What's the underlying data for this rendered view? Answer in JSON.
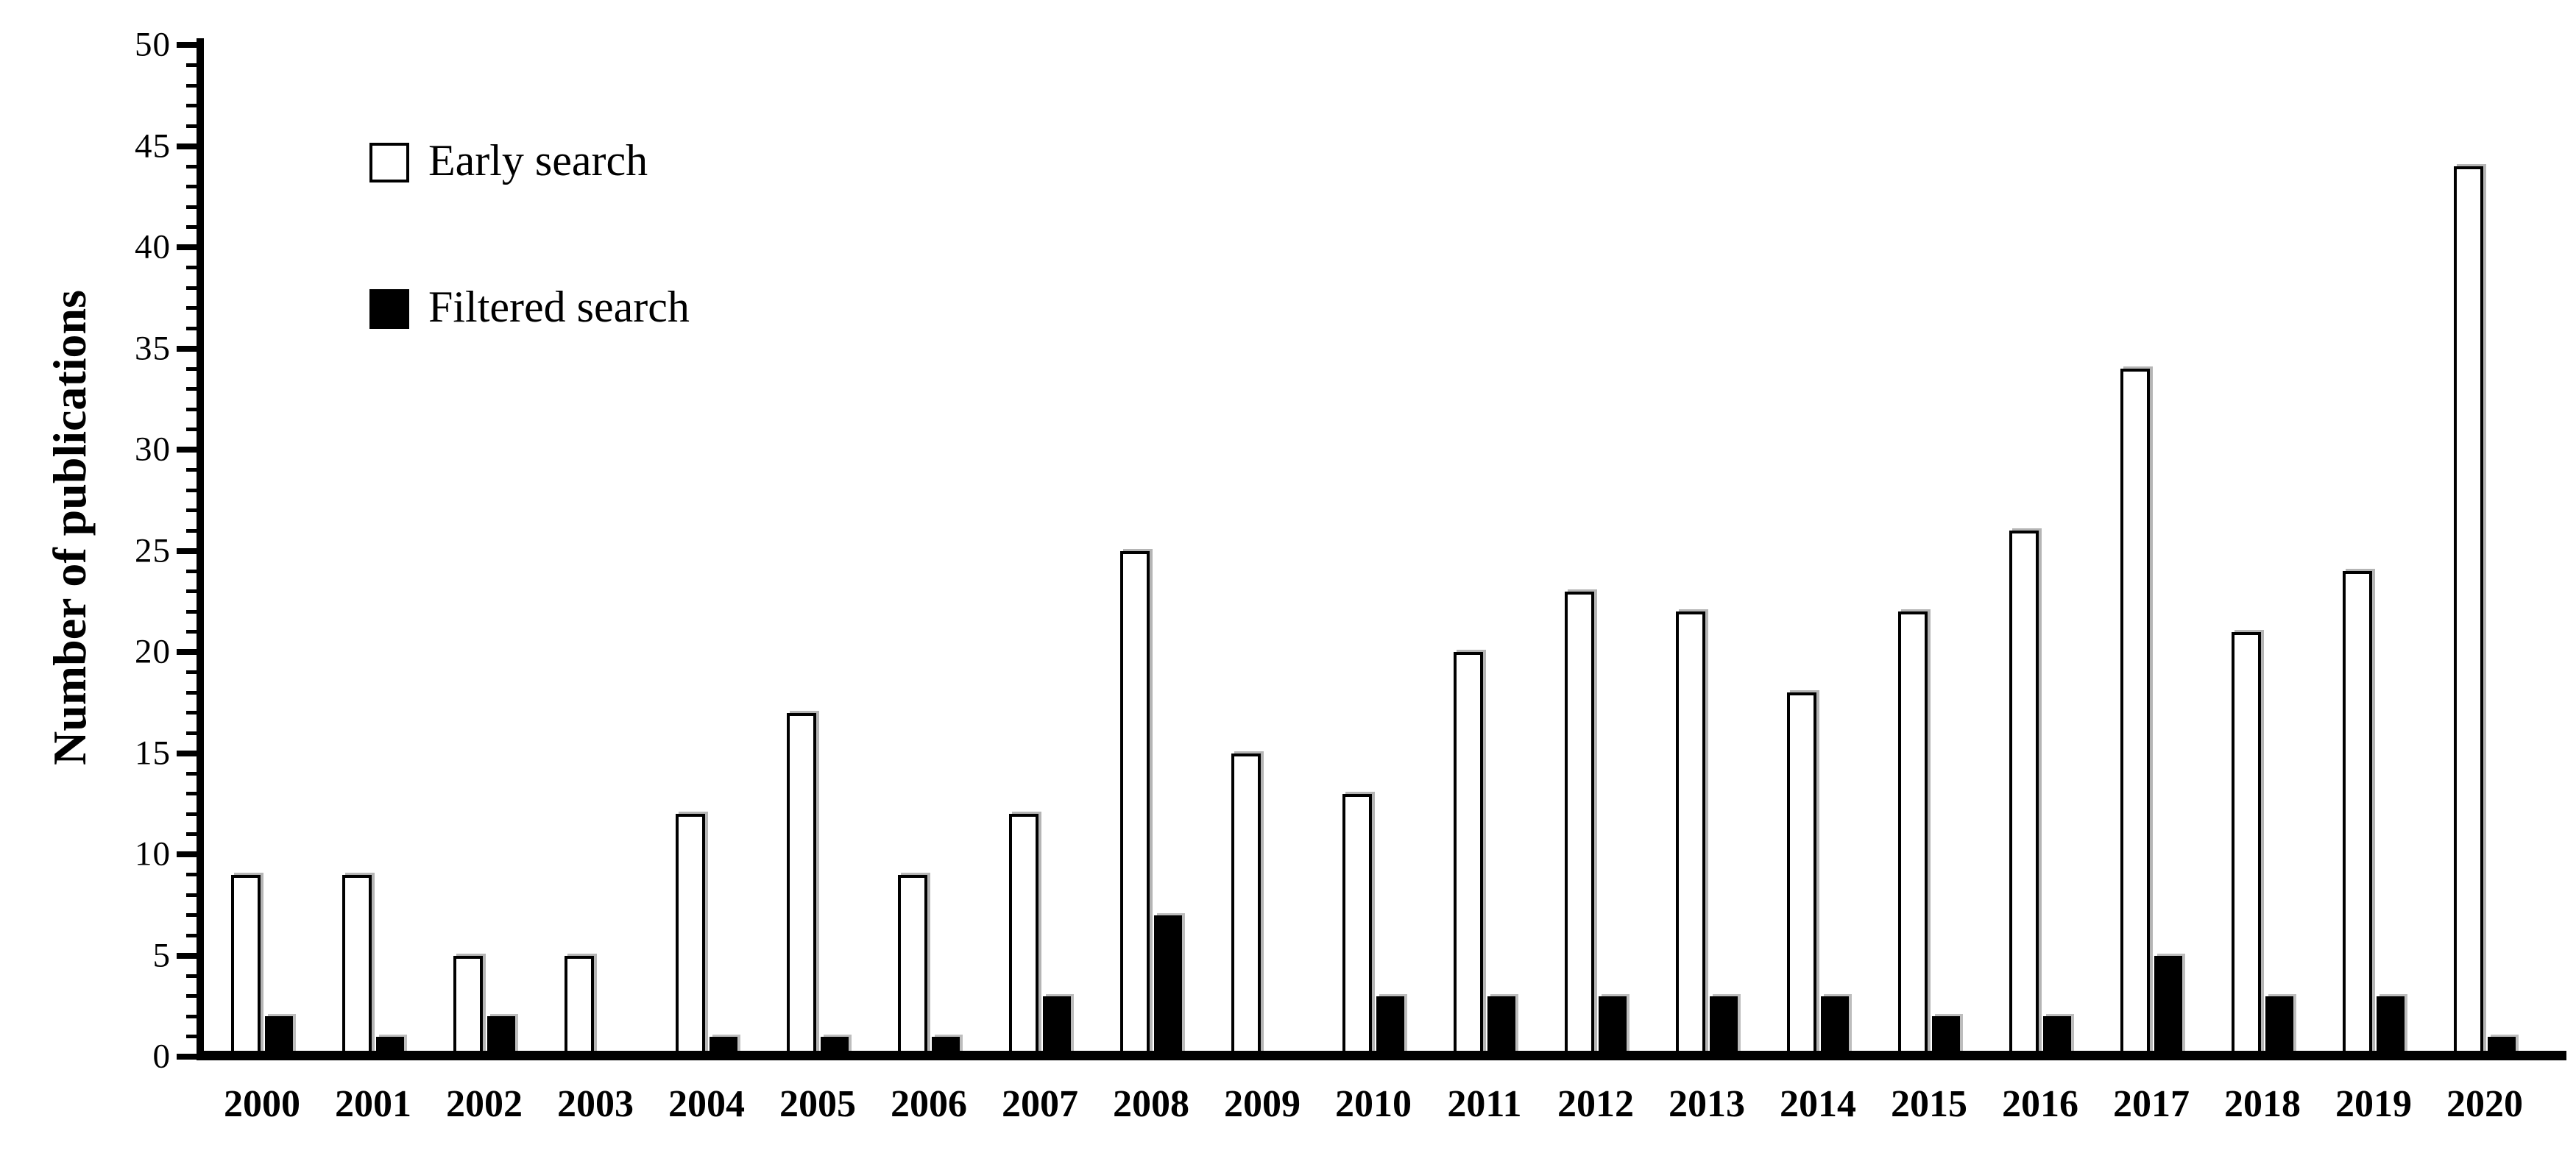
{
  "figure": {
    "background": "#ffffff",
    "axis_color": "#000000",
    "ylabel": "Number of publications"
  },
  "legend": {
    "items": [
      {
        "label": "Early search",
        "swatch": "white-outlined-square"
      },
      {
        "label": "Filtered search",
        "swatch": "black-filled-square"
      }
    ]
  },
  "chart_data": {
    "type": "bar",
    "title": "",
    "xlabel": "",
    "ylabel": "Number of publications",
    "categories": [
      "2000",
      "2001",
      "2002",
      "2003",
      "2004",
      "2005",
      "2006",
      "2007",
      "2008",
      "2009",
      "2010",
      "2011",
      "2012",
      "2013",
      "2014",
      "2015",
      "2016",
      "2017",
      "2018",
      "2019",
      "2020"
    ],
    "series": [
      {
        "name": "Early search",
        "color": "#ffffff",
        "border_color": "#000000",
        "values": [
          9,
          9,
          5,
          5,
          12,
          17,
          9,
          12,
          25,
          15,
          13,
          20,
          23,
          22,
          18,
          22,
          26,
          34,
          21,
          24,
          44
        ]
      },
      {
        "name": "Filtered search",
        "color": "#000000",
        "border_color": "#000000",
        "values": [
          2,
          1,
          2,
          0,
          1,
          1,
          1,
          3,
          7,
          0,
          3,
          3,
          3,
          3,
          3,
          2,
          2,
          5,
          3,
          3,
          1
        ]
      }
    ],
    "ylim": [
      0,
      50
    ],
    "yticks": [
      0,
      5,
      10,
      15,
      20,
      25,
      30,
      35,
      40,
      45,
      50
    ],
    "minor_tick_step": 1,
    "grid": false,
    "legend_position": "upper-left"
  }
}
